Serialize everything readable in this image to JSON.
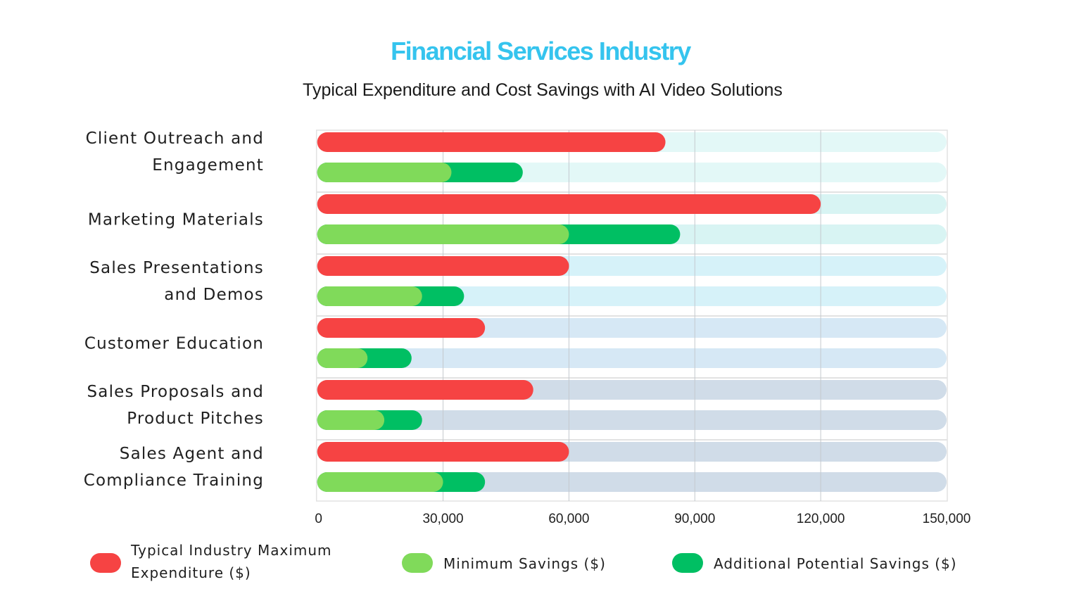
{
  "chart_data": {
    "type": "bar",
    "orientation": "horizontal",
    "title": "Financial Services Industry",
    "subtitle": "Typical Expenditure and Cost Savings with AI Video Solutions",
    "categories": [
      [
        "Client Outreach and",
        "Engagement"
      ],
      [
        "Marketing Materials"
      ],
      [
        "Sales Presentations",
        "and Demos"
      ],
      [
        "Customer Education"
      ],
      [
        "Sales Proposals and",
        "Product Pitches"
      ],
      [
        "Sales Agent and",
        "Compliance Training"
      ]
    ],
    "series": [
      {
        "name": "Typical Industry Maximum Expenditure ($)",
        "legend_lines": [
          "Typical Industry Maximum",
          "Expenditure ($)"
        ],
        "color": "#f64343",
        "values": [
          83000,
          120000,
          60000,
          40000,
          51500,
          60000
        ]
      },
      {
        "name": "Minimum Savings ($)",
        "legend_lines": [
          "Minimum Savings ($)"
        ],
        "color": "#80da5a",
        "values": [
          32000,
          60000,
          25000,
          12000,
          16000,
          30000
        ]
      },
      {
        "name": "Additional Potential Savings ($)",
        "legend_lines": [
          "Additional Potential Savings ($)"
        ],
        "color": "#00bf63",
        "values": [
          17000,
          26500,
          10000,
          10500,
          9000,
          10000
        ],
        "stacked_on": "Minimum Savings ($)"
      }
    ],
    "track_colors": [
      "#e3f8f7",
      "#d8f4f3",
      "#d6f2f9",
      "#d6e8f5",
      "#d0dce8",
      "#d0dce8"
    ],
    "xlim": [
      0,
      150000
    ],
    "xticks": [
      "0",
      "30,000",
      "60,000",
      "90,000",
      "120,000",
      "150,000"
    ],
    "xtick_values": [
      0,
      30000,
      60000,
      90000,
      120000,
      150000
    ],
    "grid": true,
    "legend_position": "bottom"
  }
}
